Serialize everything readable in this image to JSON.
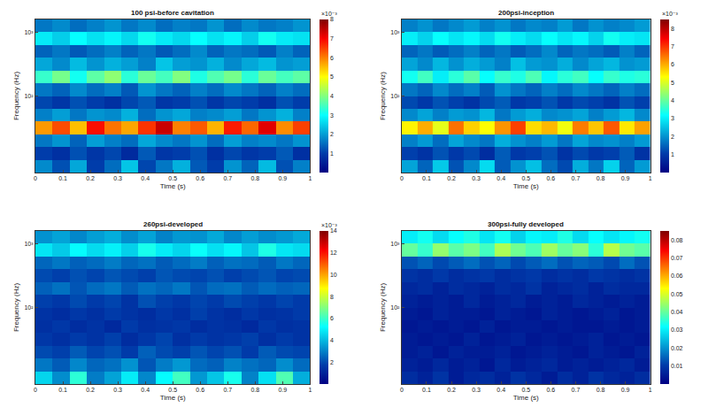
{
  "chart_data": [
    {
      "type": "heatmap",
      "title": "100 psi-before cavitation",
      "x_label": "Time (s)",
      "y_label": "Frequency (Hz)",
      "log": "y",
      "grid": false,
      "xlim": [
        0,
        1
      ],
      "xticks": [
        0,
        0.1,
        0.2,
        0.3,
        0.4,
        0.5,
        0.6,
        0.7,
        0.8,
        0.9,
        1
      ],
      "ylim": [
        6.3,
        1585
      ],
      "yticks": [
        {
          "value": 100,
          "label": "10²"
        },
        {
          "value": 1000,
          "label": "10³"
        }
      ],
      "time_edges": [
        0,
        0.0625,
        0.125,
        0.1875,
        0.25,
        0.3125,
        0.375,
        0.4375,
        0.5,
        0.5625,
        0.625,
        0.6875,
        0.75,
        0.8125,
        0.875,
        0.9375,
        1
      ],
      "frequency_edges": [
        6.3,
        10,
        15.8,
        25.1,
        39.8,
        63.1,
        100,
        158,
        251,
        398,
        631,
        1000,
        1585
      ],
      "cells": [
        [
          1.8,
          1.2,
          2.1,
          1.0,
          1.5,
          2.4,
          1.1,
          1.6,
          2.2,
          1.3,
          1.0,
          1.9,
          1.4,
          2.3,
          1.2,
          1.7
        ],
        [
          1.0,
          0.8,
          1.2,
          0.9,
          1.1,
          0.7,
          1.3,
          0.9,
          1.0,
          1.2,
          0.8,
          1.1,
          0.9,
          1.0,
          1.3,
          0.8
        ],
        [
          1.6,
          1.9,
          1.4,
          2.0,
          1.7,
          1.5,
          2.1,
          1.8,
          1.6,
          1.9,
          1.5,
          2.0,
          1.7,
          1.8,
          1.6,
          1.9
        ],
        [
          5.8,
          6.4,
          5.5,
          6.9,
          6.1,
          5.7,
          6.6,
          7.4,
          6.0,
          6.3,
          5.6,
          6.8,
          6.2,
          7.2,
          5.9,
          6.5
        ],
        [
          1.7,
          2.0,
          1.6,
          1.9,
          1.8,
          2.2,
          1.5,
          1.9,
          2.1,
          1.7,
          1.8,
          2.0,
          1.6,
          1.9,
          2.2,
          1.7
        ],
        [
          1.1,
          0.9,
          1.2,
          1.0,
          0.8,
          1.1,
          1.3,
          0.9,
          1.0,
          1.2,
          0.9,
          1.1,
          1.0,
          0.8,
          1.2,
          1.0
        ],
        [
          1.6,
          1.4,
          1.8,
          1.5,
          1.7,
          1.3,
          1.9,
          1.6,
          1.4,
          1.7,
          1.5,
          1.8,
          1.6,
          1.4,
          1.7,
          1.5
        ],
        [
          3.4,
          3.9,
          3.1,
          3.7,
          4.1,
          3.3,
          3.8,
          3.5,
          4.0,
          3.2,
          3.6,
          3.9,
          3.3,
          3.8,
          3.5,
          3.7
        ],
        [
          2.1,
          1.8,
          2.3,
          1.9,
          2.2,
          2.0,
          1.7,
          2.4,
          2.0,
          1.9,
          2.2,
          1.8,
          2.1,
          2.3,
          1.9,
          2.0
        ],
        [
          1.4,
          1.6,
          1.3,
          1.5,
          1.7,
          1.4,
          1.6,
          1.3,
          1.5,
          1.8,
          1.4,
          1.6,
          1.5,
          1.3,
          1.7,
          1.4
        ],
        [
          2.8,
          2.5,
          3.0,
          2.7,
          2.9,
          2.6,
          3.1,
          2.8,
          2.6,
          3.0,
          2.7,
          2.9,
          2.5,
          3.1,
          2.8,
          2.7
        ],
        [
          1.6,
          1.8,
          1.5,
          1.7,
          1.9,
          1.6,
          1.8,
          1.5,
          1.7,
          1.6,
          1.9,
          1.5,
          1.8,
          1.6,
          1.7,
          1.9
        ]
      ],
      "colorbar": {
        "range": [
          0,
          8
        ],
        "ticks": [
          1,
          2,
          3,
          4,
          5,
          6,
          7,
          8
        ],
        "label": "×10⁻³"
      }
    },
    {
      "type": "heatmap",
      "title": "200psi-inception",
      "x_label": "Time (s)",
      "y_label": "Frequency (Hz)",
      "log": "y",
      "grid": false,
      "xlim": [
        0,
        1
      ],
      "xticks": [
        0,
        0.1,
        0.2,
        0.3,
        0.4,
        0.5,
        0.6,
        0.7,
        0.8,
        0.9,
        1
      ],
      "ylim": [
        6.3,
        1585
      ],
      "yticks": [
        {
          "value": 100,
          "label": "10²"
        },
        {
          "value": 1000,
          "label": "10³"
        }
      ],
      "time_edges": [
        0,
        0.0625,
        0.125,
        0.1875,
        0.25,
        0.3125,
        0.375,
        0.4375,
        0.5,
        0.5625,
        0.625,
        0.6875,
        0.75,
        0.8125,
        0.875,
        0.9375,
        1
      ],
      "frequency_edges": [
        6.3,
        10,
        15.8,
        25.1,
        39.8,
        63.1,
        100,
        158,
        251,
        398,
        631,
        1000,
        1585
      ],
      "cells": [
        [
          2.2,
          1.5,
          2.6,
          1.3,
          1.9,
          2.8,
          1.4,
          2.0,
          2.5,
          1.6,
          1.2,
          2.3,
          1.7,
          2.7,
          1.5,
          2.1
        ],
        [
          1.1,
          0.9,
          1.3,
          1.0,
          1.2,
          0.8,
          1.4,
          1.0,
          1.1,
          1.3,
          0.9,
          1.2,
          1.0,
          1.1,
          1.4,
          0.9
        ],
        [
          1.8,
          2.1,
          1.6,
          2.2,
          1.9,
          1.7,
          2.3,
          2.0,
          1.8,
          2.1,
          1.7,
          2.2,
          1.9,
          2.0,
          1.8,
          2.1
        ],
        [
          5.4,
          6.0,
          5.1,
          6.5,
          5.7,
          5.3,
          6.2,
          6.9,
          5.6,
          5.9,
          5.2,
          6.4,
          5.8,
          6.7,
          5.5,
          6.1
        ],
        [
          1.9,
          2.2,
          1.8,
          2.1,
          2.0,
          2.4,
          1.7,
          2.1,
          2.3,
          1.9,
          2.0,
          2.2,
          1.8,
          2.1,
          2.4,
          1.9
        ],
        [
          1.2,
          1.0,
          1.3,
          1.1,
          0.9,
          1.2,
          1.4,
          1.0,
          1.1,
          1.3,
          1.0,
          1.2,
          1.1,
          0.9,
          1.3,
          1.1
        ],
        [
          1.7,
          1.5,
          1.9,
          1.6,
          1.8,
          1.4,
          2.0,
          1.7,
          1.5,
          1.8,
          1.6,
          1.9,
          1.7,
          1.5,
          1.8,
          1.6
        ],
        [
          3.3,
          3.7,
          3.0,
          3.5,
          3.9,
          3.2,
          3.6,
          3.4,
          3.8,
          3.1,
          3.5,
          3.7,
          3.2,
          3.6,
          3.4,
          3.5
        ],
        [
          2.2,
          1.9,
          2.4,
          2.0,
          2.3,
          2.1,
          1.8,
          2.5,
          2.1,
          2.0,
          2.3,
          1.9,
          2.2,
          2.4,
          2.0,
          2.1
        ],
        [
          1.5,
          1.7,
          1.4,
          1.6,
          1.8,
          1.5,
          1.7,
          1.4,
          1.6,
          1.9,
          1.5,
          1.7,
          1.6,
          1.4,
          1.8,
          1.5
        ],
        [
          3.0,
          2.7,
          3.2,
          2.9,
          3.1,
          2.8,
          3.3,
          3.0,
          2.8,
          3.2,
          2.9,
          3.1,
          2.7,
          3.3,
          3.0,
          2.9
        ],
        [
          1.8,
          2.0,
          1.7,
          1.9,
          2.1,
          1.8,
          2.0,
          1.7,
          1.9,
          1.8,
          2.1,
          1.7,
          2.0,
          1.8,
          1.9,
          2.1
        ]
      ],
      "colorbar": {
        "range": [
          0,
          8.5
        ],
        "ticks": [
          1,
          2,
          3,
          4,
          5,
          6,
          7,
          8
        ],
        "label": "×10⁻³"
      }
    },
    {
      "type": "heatmap",
      "title": "260psi-developed",
      "x_label": "Time (s)",
      "y_label": "Frequency (Hz)",
      "log": "y",
      "grid": false,
      "xlim": [
        0,
        1
      ],
      "xticks": [
        0,
        0.1,
        0.2,
        0.3,
        0.4,
        0.5,
        0.6,
        0.7,
        0.8,
        0.9,
        1
      ],
      "ylim": [
        6.3,
        1585
      ],
      "yticks": [
        {
          "value": 100,
          "label": "10²"
        },
        {
          "value": 1000,
          "label": "10³"
        }
      ],
      "time_edges": [
        0,
        0.0625,
        0.125,
        0.1875,
        0.25,
        0.3125,
        0.375,
        0.4375,
        0.5,
        0.5625,
        0.625,
        0.6875,
        0.75,
        0.8125,
        0.875,
        0.9375,
        1
      ],
      "frequency_edges": [
        6.3,
        10,
        15.8,
        25.1,
        39.8,
        63.1,
        100,
        158,
        251,
        398,
        631,
        1000,
        1585
      ],
      "cells": [
        [
          4.5,
          3.2,
          5.8,
          2.9,
          3.6,
          4.9,
          3.1,
          5.2,
          6.1,
          3.4,
          4.2,
          5.5,
          3.0,
          4.7,
          6.3,
          3.8
        ],
        [
          2.8,
          2.3,
          3.1,
          2.5,
          2.7,
          3.3,
          2.2,
          2.9,
          3.4,
          2.6,
          2.4,
          3.0,
          2.7,
          2.5,
          3.2,
          2.6
        ],
        [
          2.0,
          1.8,
          2.3,
          1.9,
          2.1,
          1.7,
          2.4,
          2.0,
          1.8,
          2.2,
          1.9,
          2.1,
          1.7,
          2.3,
          2.0,
          1.9
        ],
        [
          1.6,
          1.4,
          1.7,
          1.5,
          1.8,
          1.3,
          1.6,
          1.9,
          1.4,
          1.7,
          1.5,
          1.6,
          1.8,
          1.4,
          1.7,
          1.5
        ],
        [
          1.4,
          1.6,
          1.3,
          1.5,
          1.2,
          1.7,
          1.4,
          1.5,
          1.6,
          1.3,
          1.5,
          1.4,
          1.2,
          1.6,
          1.4,
          1.5
        ],
        [
          1.5,
          1.3,
          1.6,
          1.4,
          1.7,
          1.5,
          1.3,
          1.6,
          1.4,
          1.8,
          1.5,
          1.3,
          1.6,
          1.4,
          1.5,
          1.7
        ],
        [
          1.8,
          1.6,
          2.0,
          1.7,
          1.9,
          1.5,
          2.1,
          1.8,
          1.6,
          1.9,
          1.7,
          2.0,
          1.8,
          1.6,
          1.9,
          1.7
        ],
        [
          2.4,
          2.7,
          2.2,
          2.6,
          2.8,
          2.3,
          2.7,
          2.5,
          2.8,
          2.2,
          2.6,
          2.7,
          2.3,
          2.6,
          2.4,
          2.5
        ],
        [
          2.0,
          1.8,
          2.1,
          1.9,
          2.2,
          2.0,
          1.8,
          2.2,
          2.0,
          1.9,
          2.1,
          1.8,
          2.0,
          2.2,
          1.9,
          2.0
        ],
        [
          2.5,
          2.8,
          2.4,
          2.6,
          2.9,
          2.5,
          2.7,
          2.3,
          2.6,
          2.9,
          2.4,
          2.7,
          2.6,
          2.3,
          2.8,
          2.5
        ],
        [
          4.8,
          4.3,
          5.2,
          4.6,
          5.0,
          4.4,
          5.5,
          4.9,
          4.5,
          5.3,
          4.7,
          5.1,
          4.2,
          5.6,
          4.8,
          4.6
        ],
        [
          3.3,
          3.6,
          3.1,
          3.5,
          3.8,
          3.2,
          3.6,
          3.0,
          3.4,
          3.3,
          3.7,
          3.1,
          3.5,
          3.2,
          3.4,
          3.7
        ]
      ],
      "colorbar": {
        "range": [
          0,
          14
        ],
        "ticks": [
          2,
          4,
          6,
          8,
          10,
          12,
          14
        ],
        "label": "×10⁻³"
      }
    },
    {
      "type": "heatmap",
      "title": "300psi-fully developed",
      "x_label": "Time (s)",
      "y_label": "Frequency (Hz)",
      "log": "y",
      "grid": false,
      "xlim": [
        0,
        1
      ],
      "xticks": [
        0,
        0.1,
        0.2,
        0.3,
        0.4,
        0.5,
        0.6,
        0.7,
        0.8,
        0.9,
        1
      ],
      "ylim": [
        6.3,
        1585
      ],
      "yticks": [
        {
          "value": 100,
          "label": "10²"
        },
        {
          "value": 1000,
          "label": "10³"
        }
      ],
      "time_edges": [
        0,
        0.0625,
        0.125,
        0.1875,
        0.25,
        0.3125,
        0.375,
        0.4375,
        0.5,
        0.5625,
        0.625,
        0.6875,
        0.75,
        0.8125,
        0.875,
        0.9375,
        1
      ],
      "frequency_edges": [
        6.3,
        10,
        15.8,
        25.1,
        39.8,
        63.1,
        100,
        158,
        251,
        398,
        631,
        1000,
        1585
      ],
      "cells": [
        [
          0.008,
          0.006,
          0.009,
          0.005,
          0.007,
          0.008,
          0.006,
          0.009,
          0.007,
          0.005,
          0.008,
          0.006,
          0.009,
          0.007,
          0.006,
          0.008
        ],
        [
          0.006,
          0.005,
          0.007,
          0.005,
          0.006,
          0.004,
          0.007,
          0.005,
          0.006,
          0.007,
          0.005,
          0.006,
          0.005,
          0.006,
          0.007,
          0.005
        ],
        [
          0.005,
          0.006,
          0.004,
          0.006,
          0.005,
          0.005,
          0.006,
          0.004,
          0.005,
          0.006,
          0.005,
          0.004,
          0.006,
          0.005,
          0.004,
          0.006
        ],
        [
          0.005,
          0.004,
          0.005,
          0.004,
          0.006,
          0.004,
          0.005,
          0.006,
          0.004,
          0.005,
          0.004,
          0.005,
          0.006,
          0.004,
          0.005,
          0.004
        ],
        [
          0.004,
          0.005,
          0.004,
          0.005,
          0.004,
          0.006,
          0.004,
          0.005,
          0.005,
          0.004,
          0.005,
          0.004,
          0.004,
          0.005,
          0.004,
          0.005
        ],
        [
          0.005,
          0.004,
          0.006,
          0.005,
          0.005,
          0.004,
          0.006,
          0.005,
          0.004,
          0.006,
          0.005,
          0.004,
          0.005,
          0.006,
          0.004,
          0.005
        ],
        [
          0.006,
          0.005,
          0.006,
          0.005,
          0.007,
          0.005,
          0.006,
          0.007,
          0.005,
          0.006,
          0.005,
          0.007,
          0.006,
          0.005,
          0.006,
          0.005
        ],
        [
          0.007,
          0.008,
          0.006,
          0.008,
          0.007,
          0.006,
          0.008,
          0.007,
          0.009,
          0.006,
          0.007,
          0.008,
          0.006,
          0.008,
          0.007,
          0.007
        ],
        [
          0.009,
          0.008,
          0.01,
          0.008,
          0.009,
          0.01,
          0.008,
          0.009,
          0.01,
          0.008,
          0.009,
          0.008,
          0.01,
          0.009,
          0.008,
          0.009
        ],
        [
          0.013,
          0.015,
          0.012,
          0.014,
          0.016,
          0.013,
          0.015,
          0.012,
          0.014,
          0.016,
          0.013,
          0.015,
          0.014,
          0.012,
          0.016,
          0.013
        ],
        [
          0.04,
          0.036,
          0.044,
          0.039,
          0.042,
          0.037,
          0.046,
          0.041,
          0.038,
          0.045,
          0.04,
          0.043,
          0.035,
          0.047,
          0.041,
          0.039
        ],
        [
          0.03,
          0.033,
          0.028,
          0.032,
          0.034,
          0.029,
          0.033,
          0.027,
          0.031,
          0.03,
          0.034,
          0.028,
          0.032,
          0.029,
          0.031,
          0.033
        ]
      ],
      "colorbar": {
        "range": [
          0,
          0.085
        ],
        "ticks": [
          0.01,
          0.02,
          0.03,
          0.04,
          0.05,
          0.06,
          0.07,
          0.08
        ]
      }
    }
  ]
}
